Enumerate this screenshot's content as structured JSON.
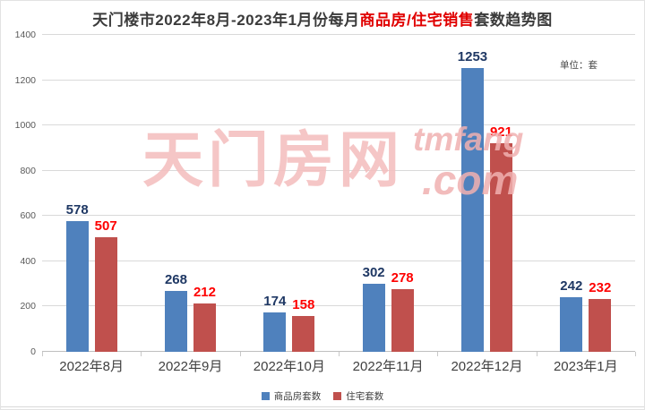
{
  "title": {
    "prefix": "天门楼市2022年8月-2023年1月份每月",
    "highlight": "商品房/住宅销售",
    "suffix": "套数趋势图"
  },
  "unit_label": "单位：套",
  "watermark": {
    "cn": "天门房网",
    "latin_top": "tmfang",
    "latin_bottom": ".com"
  },
  "chart_data": {
    "type": "bar",
    "title": "天门楼市2022年8月-2023年1月份每月商品房/住宅销售套数趋势图",
    "categories": [
      "2022年8月",
      "2022年9月",
      "2022年10月",
      "2022年11月",
      "2022年12月",
      "2023年1月"
    ],
    "series": [
      {
        "name": "商品房套数",
        "values": [
          578,
          268,
          174,
          302,
          1253,
          242
        ],
        "bar_color": "#4f81bd",
        "label_color": "#1f3864"
      },
      {
        "name": "住宅套数",
        "values": [
          507,
          212,
          158,
          278,
          921,
          232
        ],
        "bar_color": "#c0504d",
        "label_color": "#fe0000"
      }
    ],
    "xlabel": "",
    "ylabel": "",
    "unit": "套",
    "ylim": [
      0,
      1400
    ],
    "yticks": [
      0,
      200,
      400,
      600,
      800,
      1000,
      1200,
      1400
    ],
    "grid": true,
    "legend_position": "bottom",
    "data_labels": true
  },
  "legend": [
    {
      "label": "商品房套数",
      "color": "#4f81bd"
    },
    {
      "label": "住宅套数",
      "color": "#c0504d"
    }
  ],
  "colors": {
    "title_text": "#3b3b3b",
    "title_highlight": "#e00000",
    "gridline": "#d9d9d9",
    "axis_text": "#595959",
    "watermark_pink": "#f3bcbc"
  }
}
